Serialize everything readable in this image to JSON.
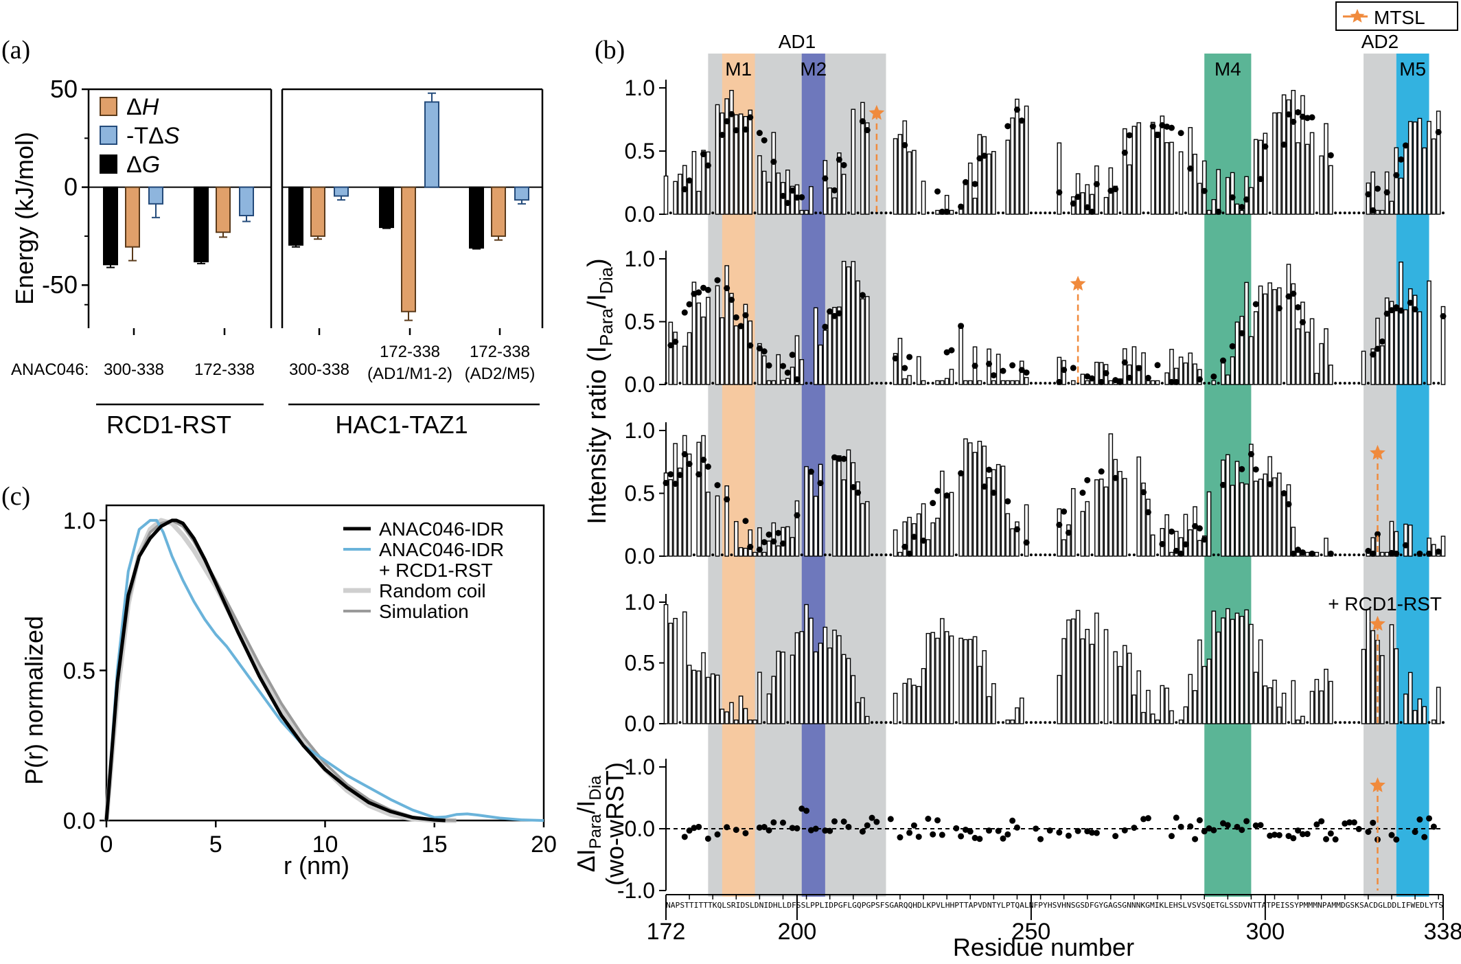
{
  "panel_labels": {
    "a": "(a)",
    "b": "(b)",
    "c": "(c)"
  },
  "colors": {
    "dH": "#E0A06A",
    "TdS": "#8EB5DD",
    "dG": "#000000",
    "ad_grey": "#CFD1D2",
    "M1": "#F6C9A0",
    "M2": "#6E78BC",
    "M4": "#5BB596",
    "M5": "#33B2E0",
    "mtsl": "#F08A3C",
    "pr_free": "#000000",
    "pr_rst": "#6AB3DA",
    "pr_coil": "#CFCFCF",
    "pr_sim": "#9A9A9A"
  },
  "chart_data": [
    {
      "id": "a",
      "type": "bar",
      "ylabel": "Energy (kJ/mol)",
      "ylim": [
        -72,
        50
      ],
      "yticks": [
        "50",
        "0",
        "-50"
      ],
      "ytick_values": [
        50,
        0,
        -50
      ],
      "x_prefix": "ANAC046:",
      "legend": [
        {
          "key": "dH",
          "label": "ΔH"
        },
        {
          "key": "TdS",
          "label": "-TΔS"
        },
        {
          "key": "dG",
          "label": "ΔG"
        }
      ],
      "groups": [
        {
          "name": "RCD1-RST",
          "categories": [
            {
              "label": [
                "300-338"
              ],
              "dG": -39.5,
              "dG_err": 1.5,
              "dH": -30.5,
              "dH_err": 7,
              "TdS": -8.5,
              "TdS_err": 7
            },
            {
              "label": [
                "172-338"
              ],
              "dG": -38,
              "dG_err": 1,
              "dH": -23,
              "dH_err": 2.5,
              "TdS": -14.5,
              "TdS_err": 3
            }
          ]
        },
        {
          "name": "HAC1-TAZ1",
          "categories": [
            {
              "label": [
                "300-338"
              ],
              "dG": -29.5,
              "dG_err": 1,
              "dH": -25,
              "dH_err": 1.5,
              "TdS": -4.5,
              "TdS_err": 2
            },
            {
              "label": [
                "172-338",
                "(AD1/M1-2)"
              ],
              "dG": -20.5,
              "dG_err": 0.5,
              "dH": -63.5,
              "dH_err": 4.5,
              "TdS": 43.5,
              "TdS_err": 4.5
            },
            {
              "label": [
                "172-338",
                "(AD2/M5)"
              ],
              "dG": -31,
              "dG_err": 0.5,
              "dH": -25,
              "dH_err": 2,
              "TdS": -6.5,
              "TdS_err": 2
            }
          ]
        }
      ]
    },
    {
      "id": "b",
      "type": "bar",
      "xlabel": "Residue number",
      "ylabel_parts": {
        "main": "Intensity ratio (I",
        "sub1": "Para",
        "mid": "/I",
        "sub2": "Dia",
        "end": ")"
      },
      "delta_ylabel": {
        "line1_pre": "ΔI",
        "sub1": "Para",
        "mid": "/I",
        "sub2": "Dia",
        "line2": "(wo-wRST)"
      },
      "xlim": [
        172,
        338
      ],
      "xticks": [
        172,
        200,
        250,
        300,
        338
      ],
      "sequence": "NAPSTTITTTKQLSRIDSLDNIDHLLDFSSLPPLIDPGFLGQPGPSFSGARQQHDLKPVLHHPTTAPVDNTYLPTQALNFPYHSVHNSGSDFGYGAGSGNNNKGMIKLEHSLVSVSQETGLSSDVNTTATPEISSYPMMMNPAMMDGSKSACDGLDDLIFWEDLYTS",
      "regions": [
        {
          "label": "AD1",
          "start": 181,
          "end": 219,
          "color": "ad_grey"
        },
        {
          "label": "AD2",
          "start": 321,
          "end": 328,
          "color": "ad_grey"
        },
        {
          "label": "M1",
          "start": 184,
          "end": 191,
          "color": "M1"
        },
        {
          "label": "M2",
          "start": 201,
          "end": 206,
          "color": "M2"
        },
        {
          "label": "M4",
          "start": 287,
          "end": 297,
          "color": "M4"
        },
        {
          "label": "M5",
          "start": 328,
          "end": 335,
          "color": "M5"
        }
      ],
      "mtsl_legend": "MTSL",
      "rst_annotation": "+ RCD1-RST",
      "subplots": [
        {
          "ylim": [
            0,
            1
          ],
          "yticks": [
            "0.0",
            "0.5",
            "1.0"
          ],
          "ytick_values": [
            0,
            0.5,
            1
          ],
          "mtsl_at": 217,
          "mtsl_y": 0.8,
          "seed": 11,
          "has_points": true
        },
        {
          "ylim": [
            0,
            1
          ],
          "yticks": [
            "0.0",
            "0.5",
            "1.0"
          ],
          "ytick_values": [
            0,
            0.5,
            1
          ],
          "mtsl_at": 260,
          "mtsl_y": 0.8,
          "seed": 23,
          "has_points": true
        },
        {
          "ylim": [
            0,
            1
          ],
          "yticks": [
            "0.0",
            "0.5",
            "1.0"
          ],
          "ytick_values": [
            0,
            0.5,
            1
          ],
          "mtsl_at": 324,
          "mtsl_y": 0.82,
          "seed": 37,
          "has_points": true
        },
        {
          "ylim": [
            0,
            1
          ],
          "yticks": [
            "0.0",
            "0.5",
            "1.0"
          ],
          "ytick_values": [
            0,
            0.5,
            1
          ],
          "mtsl_at": 324,
          "mtsl_y": 0.82,
          "seed": 41,
          "has_points": false
        },
        {
          "ylim": [
            -1,
            1
          ],
          "yticks": [
            "-1.0",
            "0.0",
            "1.0"
          ],
          "ytick_values": [
            -1,
            0,
            1
          ],
          "mtsl_at": 324,
          "mtsl_y": 0.7,
          "seed": 53,
          "delta": true
        }
      ]
    },
    {
      "id": "c",
      "type": "line",
      "xlabel": "r (nm)",
      "ylabel": "P(r) normalized",
      "xlim": [
        0,
        20
      ],
      "ylim": [
        0,
        1.05
      ],
      "xticks": [
        "0",
        "5",
        "10",
        "15",
        "20"
      ],
      "xtick_values": [
        0,
        5,
        10,
        15,
        20
      ],
      "yticks": [
        "0.0",
        "0.5",
        "1.0"
      ],
      "ytick_values": [
        0,
        0.5,
        1
      ],
      "series": [
        {
          "key": "pr_coil",
          "name": "Random coil",
          "width": 7,
          "x": [
            0,
            0.5,
            1,
            1.5,
            2,
            2.5,
            3,
            3.5,
            4,
            5,
            6,
            7,
            8,
            9,
            10,
            11,
            12,
            13,
            14,
            15,
            16
          ],
          "y": [
            0,
            0.42,
            0.72,
            0.89,
            0.97,
            1.0,
            0.99,
            0.95,
            0.9,
            0.78,
            0.64,
            0.5,
            0.37,
            0.26,
            0.17,
            0.1,
            0.05,
            0.02,
            0.005,
            0,
            0
          ]
        },
        {
          "key": "pr_sim",
          "name": "Simulation",
          "width": 4,
          "x": [
            0,
            0.5,
            1,
            1.5,
            2,
            2.5,
            3,
            3.5,
            4,
            5,
            6,
            7,
            8,
            9,
            10,
            11,
            12,
            13,
            14,
            15,
            16
          ],
          "y": [
            0,
            0.45,
            0.73,
            0.88,
            0.96,
            0.99,
            1.0,
            0.98,
            0.93,
            0.8,
            0.66,
            0.52,
            0.39,
            0.28,
            0.19,
            0.12,
            0.07,
            0.035,
            0.012,
            0.002,
            0
          ]
        },
        {
          "key": "pr_rst",
          "name": "ANAC046-IDR\n+ RCD1-RST",
          "width": 4,
          "x": [
            0,
            0.5,
            1,
            1.5,
            2,
            2.3,
            2.6,
            3,
            3.5,
            4,
            4.5,
            5,
            5.5,
            6,
            7,
            8,
            9,
            10,
            11,
            12,
            13,
            14,
            15,
            15.5,
            16,
            16.5,
            17,
            18,
            19,
            20
          ],
          "y": [
            0,
            0.5,
            0.83,
            0.97,
            1.0,
            1.0,
            0.96,
            0.88,
            0.8,
            0.73,
            0.67,
            0.62,
            0.58,
            0.53,
            0.43,
            0.33,
            0.25,
            0.2,
            0.15,
            0.11,
            0.07,
            0.035,
            0.01,
            0.012,
            0.02,
            0.022,
            0.018,
            0.008,
            0.002,
            0
          ]
        },
        {
          "key": "pr_free",
          "name": "ANAC046-IDR",
          "width": 5,
          "x": [
            0,
            0.5,
            1,
            1.5,
            2,
            2.5,
            3,
            3.2,
            3.5,
            4,
            4.5,
            5,
            6,
            7,
            8,
            9,
            10,
            11,
            12,
            13,
            14,
            15,
            15.5
          ],
          "y": [
            0,
            0.46,
            0.75,
            0.88,
            0.94,
            0.98,
            1.0,
            1.0,
            0.99,
            0.94,
            0.87,
            0.79,
            0.63,
            0.48,
            0.35,
            0.25,
            0.17,
            0.11,
            0.06,
            0.03,
            0.01,
            0.002,
            0
          ]
        }
      ],
      "legend_order": [
        "pr_free",
        "pr_rst",
        "pr_coil",
        "pr_sim"
      ]
    }
  ]
}
